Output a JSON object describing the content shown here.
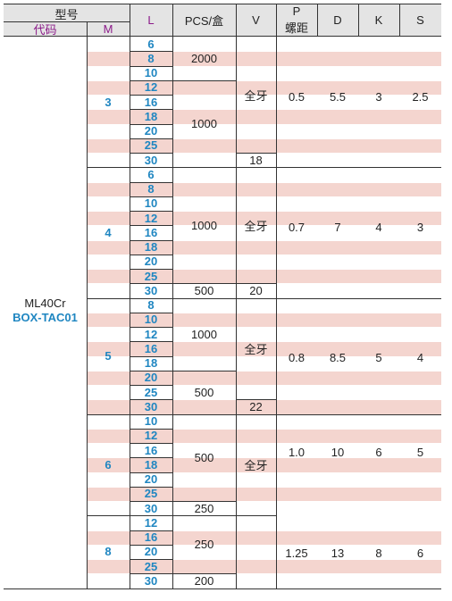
{
  "header": {
    "model": "型号",
    "code": "代码",
    "m": "M",
    "l": "L",
    "pcs": "PCS/盒",
    "v": "V",
    "p": "P",
    "pitch": "螺距",
    "d": "D",
    "k": "K",
    "s": "S"
  },
  "colors": {
    "header_bg": "#e4e4e4",
    "stripe": "#f4d5cf",
    "accent_blue": "#1f86c1",
    "accent_purple": "#8b1a89"
  },
  "product": {
    "name": "ML40Cr",
    "code": "BOX-TAC01"
  },
  "groups": [
    {
      "m": "3",
      "lengths": [
        "6",
        "8",
        "10",
        "12",
        "16",
        "18",
        "20",
        "25",
        "30"
      ],
      "pcs": [
        {
          "value": "2000"
        },
        {
          "value": "1000"
        }
      ],
      "v": [
        {
          "value": "全牙"
        },
        {
          "value": "18"
        }
      ],
      "p": "0.5",
      "d": "5.5",
      "k": "3",
      "s": "2.5"
    },
    {
      "m": "4",
      "lengths": [
        "6",
        "8",
        "10",
        "12",
        "16",
        "18",
        "20",
        "25",
        "30"
      ],
      "pcs": [
        {
          "value": "1000"
        },
        {
          "value": "500"
        }
      ],
      "v": [
        {
          "value": "全牙"
        },
        {
          "value": "20"
        }
      ],
      "p": "0.7",
      "d": "7",
      "k": "4",
      "s": "3"
    },
    {
      "m": "5",
      "lengths": [
        "8",
        "10",
        "12",
        "16",
        "18",
        "20",
        "25",
        "30"
      ],
      "pcs": [
        {
          "value": "1000"
        },
        {
          "value": "500"
        }
      ],
      "v": [
        {
          "value": "全牙"
        },
        {
          "value": "22"
        }
      ],
      "p": "0.8",
      "d": "8.5",
      "k": "5",
      "s": "4"
    },
    {
      "m": "6",
      "lengths": [
        "10",
        "12",
        "16",
        "18",
        "20",
        "25",
        "30"
      ],
      "pcs": [
        {
          "value": "500"
        },
        {
          "value": "250"
        }
      ],
      "v": [
        {
          "value": "全牙"
        }
      ],
      "p": "1.0",
      "d": "10",
      "k": "6",
      "s": "5"
    },
    {
      "m": "8",
      "lengths": [
        "12",
        "16",
        "20",
        "25",
        "30"
      ],
      "pcs": [
        {
          "value": "250"
        },
        {
          "value": "200"
        }
      ],
      "v": [],
      "p": "1.25",
      "d": "13",
      "k": "8",
      "s": "6"
    }
  ]
}
